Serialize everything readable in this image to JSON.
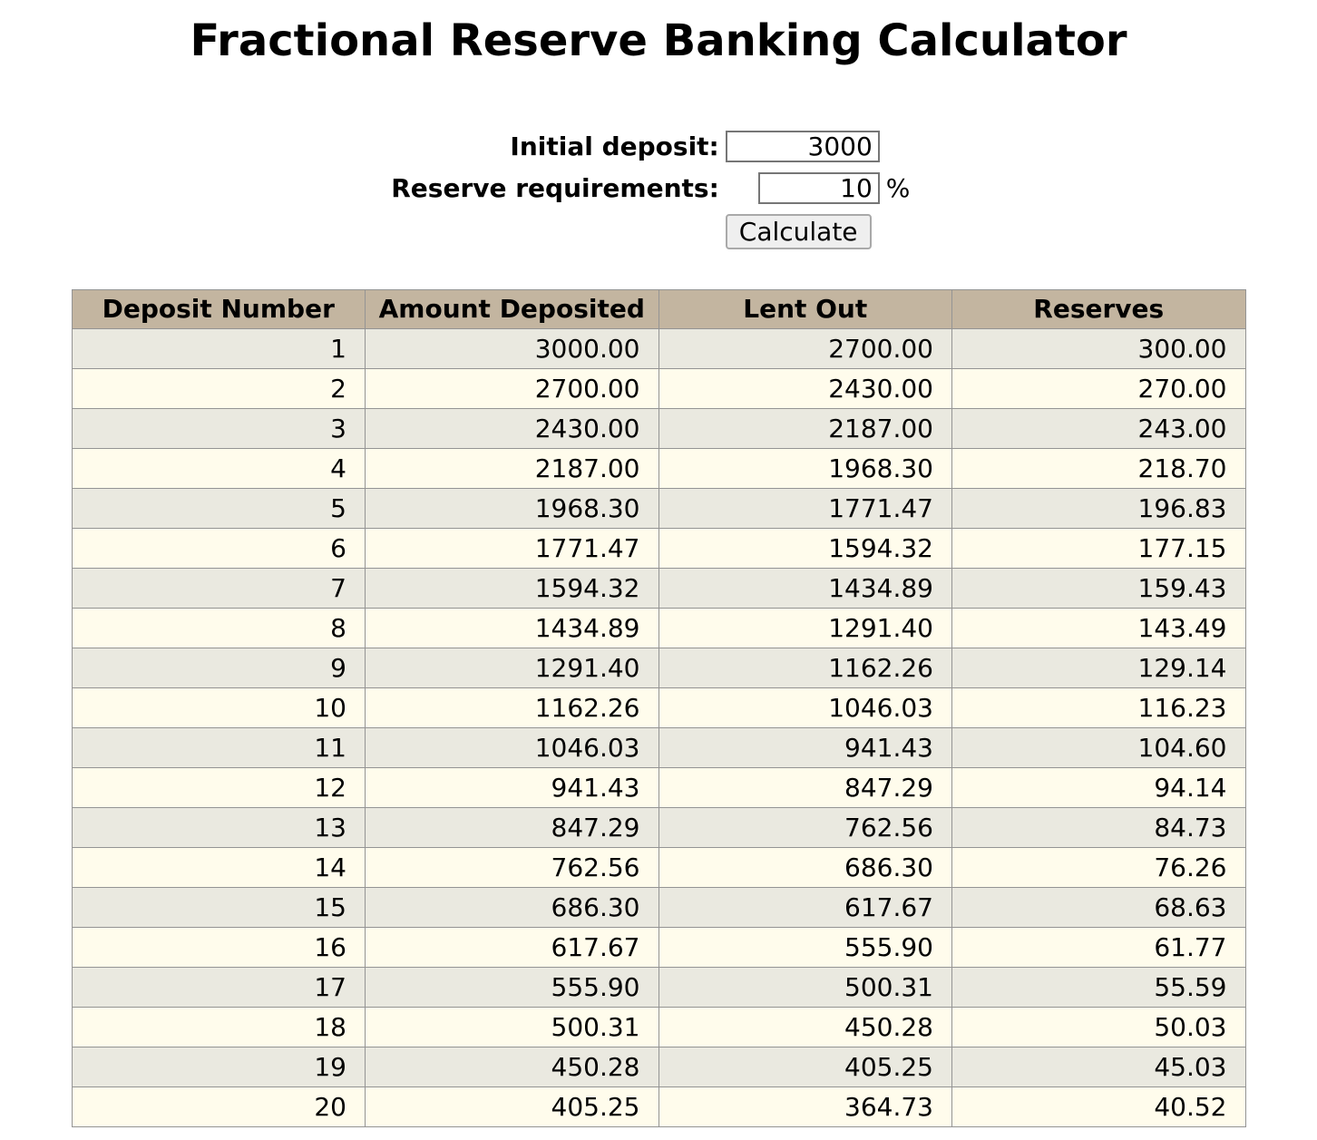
{
  "page": {
    "title": "Fractional Reserve Banking Calculator"
  },
  "form": {
    "initial_deposit": {
      "label": "Initial deposit:",
      "value": "3000"
    },
    "reserve_requirements": {
      "label": "Reserve requirements:",
      "value": "10",
      "unit": "%"
    },
    "calculate_label": "Calculate"
  },
  "table": {
    "headers": [
      "Deposit Number",
      "Amount Deposited",
      "Lent Out",
      "Reserves"
    ],
    "rows": [
      [
        "1",
        "3000.00",
        "2700.00",
        "300.00"
      ],
      [
        "2",
        "2700.00",
        "2430.00",
        "270.00"
      ],
      [
        "3",
        "2430.00",
        "2187.00",
        "243.00"
      ],
      [
        "4",
        "2187.00",
        "1968.30",
        "218.70"
      ],
      [
        "5",
        "1968.30",
        "1771.47",
        "196.83"
      ],
      [
        "6",
        "1771.47",
        "1594.32",
        "177.15"
      ],
      [
        "7",
        "1594.32",
        "1434.89",
        "159.43"
      ],
      [
        "8",
        "1434.89",
        "1291.40",
        "143.49"
      ],
      [
        "9",
        "1291.40",
        "1162.26",
        "129.14"
      ],
      [
        "10",
        "1162.26",
        "1046.03",
        "116.23"
      ],
      [
        "11",
        "1046.03",
        "941.43",
        "104.60"
      ],
      [
        "12",
        "941.43",
        "847.29",
        "94.14"
      ],
      [
        "13",
        "847.29",
        "762.56",
        "84.73"
      ],
      [
        "14",
        "762.56",
        "686.30",
        "76.26"
      ],
      [
        "15",
        "686.30",
        "617.67",
        "68.63"
      ],
      [
        "16",
        "617.67",
        "555.90",
        "61.77"
      ],
      [
        "17",
        "555.90",
        "500.31",
        "55.59"
      ],
      [
        "18",
        "500.31",
        "450.28",
        "50.03"
      ],
      [
        "19",
        "450.28",
        "405.25",
        "45.03"
      ],
      [
        "20",
        "405.25",
        "364.73",
        "40.52"
      ]
    ]
  },
  "colors": {
    "header_bg": "#c3b5a0",
    "row_odd": "#eae9e0",
    "row_even": "#fffcec",
    "border": "#949494"
  }
}
